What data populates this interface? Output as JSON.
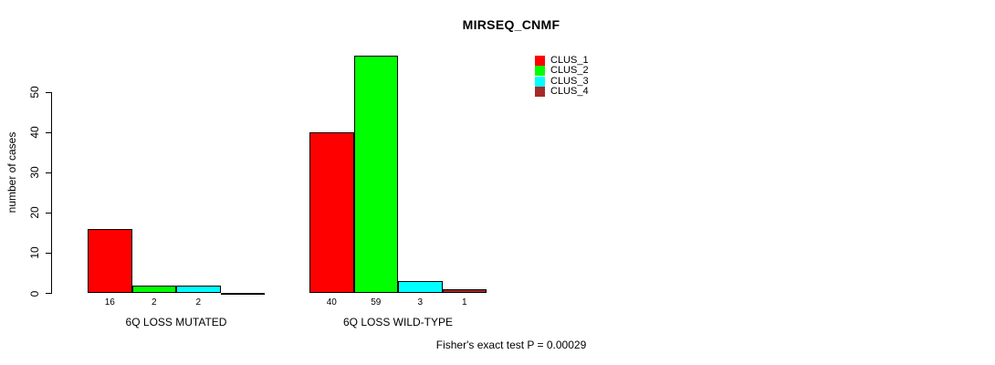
{
  "chart_data": {
    "type": "bar",
    "title": "MIRSEQ_CNMF",
    "ylabel": "number of cases",
    "xlabel": "",
    "ylim": [
      0,
      50
    ],
    "yticks": [
      0,
      10,
      20,
      30,
      40,
      50
    ],
    "grid": false,
    "legend_position": "top-right-inside",
    "categories": [
      "6Q LOSS MUTATED",
      "6Q LOSS WILD-TYPE"
    ],
    "series": [
      {
        "name": "CLUS_1",
        "color": "#ff0000",
        "values": [
          16,
          40
        ]
      },
      {
        "name": "CLUS_2",
        "color": "#00ff00",
        "values": [
          2,
          59
        ]
      },
      {
        "name": "CLUS_3",
        "color": "#00ffff",
        "values": [
          2,
          3
        ]
      },
      {
        "name": "CLUS_4",
        "color": "#a52a2a",
        "values": [
          0,
          1
        ]
      }
    ],
    "bar_value_labels": [
      [
        "16",
        "2",
        "2",
        ""
      ],
      [
        "40",
        "59",
        "3",
        "1"
      ]
    ],
    "annotation": "Fisher's exact test P = 0.00029"
  },
  "colors": {
    "background": "#ffffff",
    "axis": "#000000",
    "text": "#000000"
  }
}
